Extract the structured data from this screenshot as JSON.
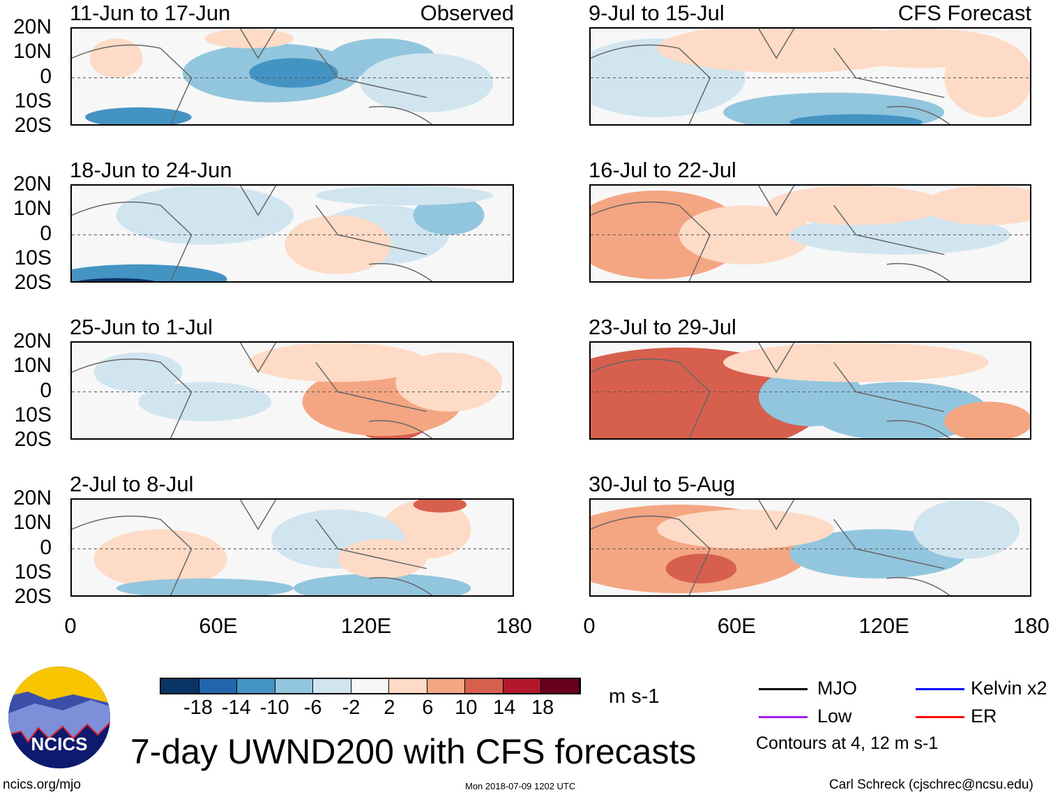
{
  "panels": [
    {
      "title": "11-Jun to 17-Jun",
      "label": "Observed"
    },
    {
      "title": "18-Jun to 24-Jun",
      "label": ""
    },
    {
      "title": "25-Jun to 1-Jul",
      "label": ""
    },
    {
      "title": "2-Jul to 8-Jul",
      "label": ""
    },
    {
      "title": "9-Jul to 15-Jul",
      "label": "CFS Forecast"
    },
    {
      "title": "16-Jul to 22-Jul",
      "label": ""
    },
    {
      "title": "23-Jul to 29-Jul",
      "label": ""
    },
    {
      "title": "30-Jul to 5-Aug",
      "label": ""
    }
  ],
  "y_ticks": [
    "20N",
    "10N",
    "0",
    "10S",
    "20S"
  ],
  "x_ticks": [
    "0",
    "60E",
    "120E",
    "180"
  ],
  "colorbar": {
    "colors": [
      "#0b3466",
      "#2166ac",
      "#4393c3",
      "#92c5de",
      "#d1e5f0",
      "#f7f7f7",
      "#fddbc7",
      "#f4a582",
      "#d6604d",
      "#b2182b",
      "#67001f"
    ],
    "labels": [
      "-18",
      "-14",
      "-10",
      "-6",
      "-2",
      "2",
      "6",
      "10",
      "14",
      "18"
    ],
    "units": "m s-1"
  },
  "legend": {
    "items": [
      {
        "name": "MJO",
        "color": "#000000"
      },
      {
        "name": "Kelvin x2",
        "color": "#0000ff"
      },
      {
        "name": "Low",
        "color": "#a020f0"
      },
      {
        "name": "ER",
        "color": "#ff0000"
      }
    ],
    "note": "Contours at 4, 12 m s-1"
  },
  "title": "7-day UWND200 with CFS forecasts",
  "logo_text": "NCICS",
  "footer": {
    "left": "ncics.org/mjo",
    "center": "Mon 2018-07-09 1202 UTC",
    "right": "Carl Schreck (cjschrec@ncsu.edu)"
  }
}
